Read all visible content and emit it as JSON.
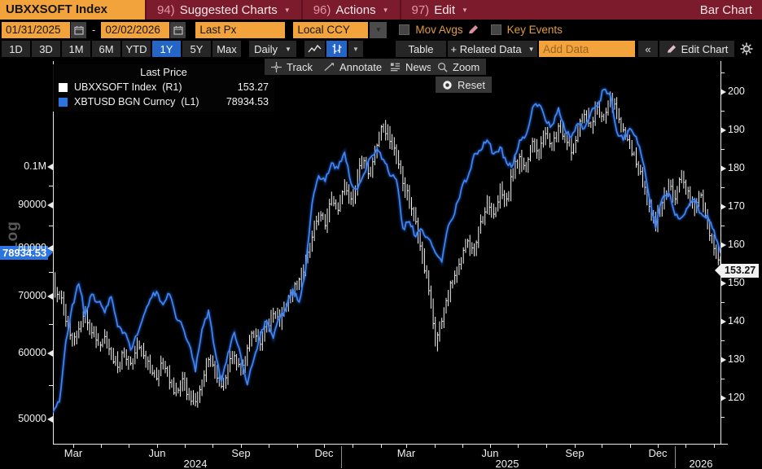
{
  "header": {
    "ticker": "UBXXSOFT Index",
    "menus": [
      {
        "num": "94)",
        "label": "Suggested Charts"
      },
      {
        "num": "96)",
        "label": "Actions"
      },
      {
        "num": "97)",
        "label": "Edit"
      }
    ],
    "right_label": "Bar Chart"
  },
  "settings_bar": {
    "date_from": "01/31/2025",
    "date_to": "02/02/2026",
    "price_field": "Last Px",
    "currency": "Local CCY",
    "mov_avgs_label": "Mov Avgs",
    "key_events_label": "Key Events"
  },
  "toolbar": {
    "periods": [
      "1D",
      "3D",
      "1M",
      "6M",
      "YTD",
      "1Y",
      "5Y",
      "Max"
    ],
    "active_period": "1Y",
    "frequency": "Daily",
    "table_label": "Table",
    "related_data_label": "+ Related Data",
    "add_data_placeholder": "Add Data",
    "collapse_label": "«",
    "edit_chart_label": "Edit Chart"
  },
  "chart_toolbar": {
    "track": "Track",
    "annotate": "Annotate",
    "news": "News",
    "zoom": "Zoom",
    "reset": "Reset"
  },
  "legend": {
    "title": "Last Price",
    "series": [
      {
        "name": "UBXXSOFT Index",
        "axis": "(R1)",
        "value": "153.27",
        "color": "#ffffff"
      },
      {
        "name": "XBTUSD BGN Curncy",
        "axis": "(L1)",
        "value": "78934.53",
        "color": "#2b74e2"
      }
    ]
  },
  "axes": {
    "left": {
      "scale_label": "Log",
      "tag": "78934.53",
      "ticks": [
        {
          "value": 100000,
          "label": "0.1M"
        },
        {
          "value": 90000,
          "label": "90000"
        },
        {
          "value": 80000,
          "label": "80000"
        },
        {
          "value": 70000,
          "label": "70000"
        },
        {
          "value": 60000,
          "label": "60000"
        },
        {
          "value": 50000,
          "label": "50000"
        }
      ],
      "minor": [
        95000,
        85000,
        75000,
        65000,
        55000
      ]
    },
    "right": {
      "tag": "153.27",
      "ticks": [
        {
          "value": 200,
          "label": "200"
        },
        {
          "value": 190,
          "label": "190"
        },
        {
          "value": 180,
          "label": "180"
        },
        {
          "value": 170,
          "label": "170"
        },
        {
          "value": 160,
          "label": "160"
        },
        {
          "value": 150,
          "label": "150"
        },
        {
          "value": 140,
          "label": "140"
        },
        {
          "value": 130,
          "label": "130"
        },
        {
          "value": 120,
          "label": "120"
        }
      ],
      "minor": [
        205,
        195,
        185,
        175,
        165,
        155,
        145,
        135,
        125,
        115
      ]
    },
    "bottom": {
      "months": [
        {
          "label": "Mar",
          "day": 22
        },
        {
          "label": "Jun",
          "day": 114
        },
        {
          "label": "Sep",
          "day": 206
        },
        {
          "label": "Dec",
          "day": 297
        },
        {
          "label": "Mar",
          "day": 387
        },
        {
          "label": "Jun",
          "day": 479
        },
        {
          "label": "Sep",
          "day": 571
        },
        {
          "label": "Dec",
          "day": 662
        }
      ],
      "years": [
        {
          "label": "2024",
          "day": 156
        },
        {
          "label": "2025",
          "day": 497
        },
        {
          "label": "2026",
          "day": 710
        }
      ],
      "separator_days": [
        316,
        681
      ],
      "tick_days": [
        22,
        53,
        83,
        114,
        144,
        175,
        206,
        236,
        267,
        297,
        328,
        359,
        387,
        418,
        448,
        479,
        509,
        540,
        571,
        601,
        632,
        662,
        693,
        724
      ],
      "total_days": 731
    }
  },
  "chart_data": {
    "type": "bar",
    "subtype": "ohlc-bars-plus-line",
    "x_start": "2024-02",
    "x_end": "2026-02",
    "sampling": "weekly",
    "left_axis": {
      "type": "log",
      "plot_top_value": 133500,
      "plot_bottom_value": 46800
    },
    "right_axis": {
      "type": "linear",
      "plot_top_value": 208,
      "plot_bottom_value": 108
    },
    "series": [
      {
        "name": "UBXXSOFT Index",
        "axis": "right",
        "style": "ohlc-bars",
        "color": "#f5f5f5",
        "last": 153.27,
        "values": [
          151,
          147,
          140,
          135,
          138,
          142,
          137,
          134,
          136,
          131,
          128,
          132,
          129,
          134,
          131,
          127,
          125,
          129,
          124,
          122,
          125,
          121,
          119,
          124,
          130,
          127,
          123,
          128,
          131,
          127,
          133,
          137,
          134,
          139,
          142,
          139,
          144,
          147,
          151,
          156,
          162,
          168,
          165,
          172,
          169,
          176,
          172,
          178,
          182,
          179,
          186,
          191,
          187,
          183,
          176,
          171,
          166,
          157,
          148,
          134,
          140,
          147,
          152,
          156,
          161,
          158,
          166,
          171,
          168,
          175,
          172,
          179,
          183,
          180,
          187,
          184,
          189,
          185,
          191,
          188,
          184,
          190,
          194,
          191,
          196,
          193,
          198,
          194,
          190,
          186,
          181,
          176,
          170,
          165,
          171,
          176,
          172,
          178,
          174,
          169,
          173,
          166,
          159,
          153.27
        ]
      },
      {
        "name": "XBTUSD BGN Curncy",
        "axis": "left",
        "style": "line",
        "color": "#4285ec",
        "last": 78934.53,
        "values": [
          51000,
          52500,
          62000,
          68500,
          72500,
          66500,
          70500,
          69000,
          67000,
          70000,
          64500,
          63500,
          60500,
          63000,
          66500,
          69500,
          71000,
          68500,
          70500,
          66000,
          64500,
          61500,
          57000,
          64000,
          67500,
          60500,
          55500,
          60000,
          63500,
          59500,
          55000,
          59000,
          63000,
          65500,
          62500,
          66000,
          68000,
          71500,
          69000,
          75500,
          90500,
          97500,
          96000,
          101000,
          99500,
          104000,
          95500,
          94000,
          98000,
          102500,
          105000,
          102000,
          97500,
          96500,
          84500,
          86000,
          82500,
          84000,
          82000,
          79000,
          77000,
          85000,
          88000,
          94000,
          97000,
          103500,
          104500,
          107500,
          103500,
          105500,
          101000,
          100500,
          107500,
          109000,
          117500,
          118500,
          113500,
          112000,
          117500,
          110500,
          108500,
          112500,
          111000,
          116000,
          118000,
          123500,
          121500,
          110000,
          107500,
          111000,
          108500,
          101500,
          92000,
          84500,
          91500,
          93000,
          87500,
          87000,
          89500,
          91500,
          88000,
          87500,
          84000,
          78934.53
        ]
      }
    ]
  }
}
